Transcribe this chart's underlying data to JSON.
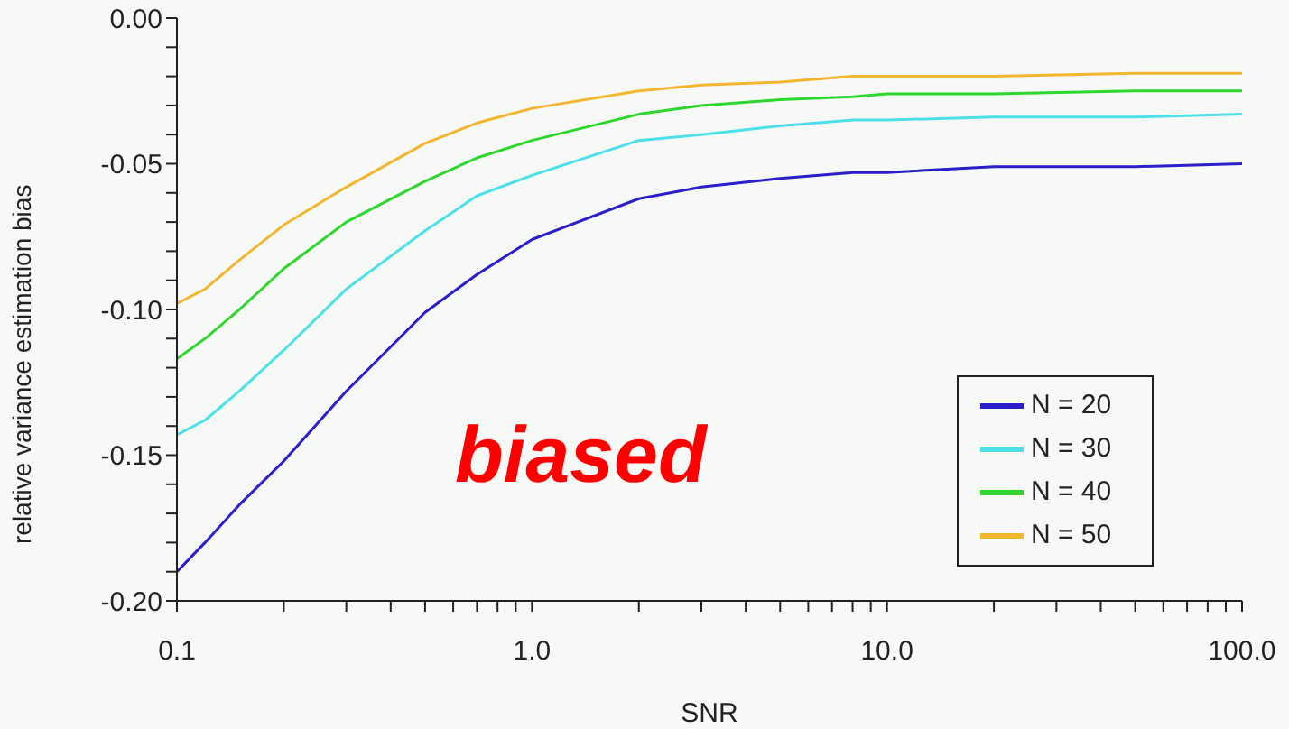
{
  "chart_data": {
    "type": "line",
    "xlabel": "SNR",
    "ylabel": "relative variance estimation bias",
    "annotations": [
      "biased"
    ],
    "x": [
      0.1,
      0.12,
      0.15,
      0.2,
      0.3,
      0.5,
      0.7,
      1,
      2,
      3,
      5,
      8,
      10,
      20,
      50,
      100
    ],
    "series": [
      {
        "name": "N = 20",
        "color": "#2a1fc8",
        "values": [
          -0.19,
          -0.18,
          -0.167,
          -0.152,
          -0.128,
          -0.101,
          -0.088,
          -0.076,
          -0.062,
          -0.058,
          -0.055,
          -0.053,
          -0.053,
          -0.051,
          -0.051,
          -0.05
        ]
      },
      {
        "name": "N = 30",
        "color": "#4de0e8",
        "values": [
          -0.143,
          -0.138,
          -0.128,
          -0.114,
          -0.093,
          -0.073,
          -0.061,
          -0.054,
          -0.042,
          -0.04,
          -0.037,
          -0.035,
          -0.035,
          -0.034,
          -0.034,
          -0.033
        ]
      },
      {
        "name": "N = 40",
        "color": "#2ed62e",
        "values": [
          -0.117,
          -0.11,
          -0.1,
          -0.086,
          -0.07,
          -0.056,
          -0.048,
          -0.042,
          -0.033,
          -0.03,
          -0.028,
          -0.027,
          -0.026,
          -0.026,
          -0.025,
          -0.025
        ]
      },
      {
        "name": "N = 50",
        "color": "#f2b630",
        "values": [
          -0.098,
          -0.093,
          -0.083,
          -0.071,
          -0.058,
          -0.043,
          -0.036,
          -0.031,
          -0.025,
          -0.023,
          -0.022,
          -0.02,
          -0.02,
          -0.02,
          -0.019,
          -0.019
        ]
      }
    ],
    "log": "x",
    "xlim": [
      0.1,
      100
    ],
    "xticks": [
      {
        "value": 0.1,
        "label": "0.1"
      },
      {
        "value": 0.2,
        "label": null
      },
      {
        "value": 0.3,
        "label": null
      },
      {
        "value": 0.4,
        "label": null
      },
      {
        "value": 0.5,
        "label": null
      },
      {
        "value": 0.6,
        "label": null
      },
      {
        "value": 0.7,
        "label": null
      },
      {
        "value": 0.8,
        "label": null
      },
      {
        "value": 0.9,
        "label": null
      },
      {
        "value": 1,
        "label": "1.0"
      },
      {
        "value": 2,
        "label": null
      },
      {
        "value": 3,
        "label": null
      },
      {
        "value": 4,
        "label": null
      },
      {
        "value": 5,
        "label": null
      },
      {
        "value": 6,
        "label": null
      },
      {
        "value": 7,
        "label": null
      },
      {
        "value": 8,
        "label": null
      },
      {
        "value": 9,
        "label": null
      },
      {
        "value": 10,
        "label": "10.0"
      },
      {
        "value": 20,
        "label": null
      },
      {
        "value": 30,
        "label": null
      },
      {
        "value": 40,
        "label": null
      },
      {
        "value": 50,
        "label": null
      },
      {
        "value": 60,
        "label": null
      },
      {
        "value": 70,
        "label": null
      },
      {
        "value": 80,
        "label": null
      },
      {
        "value": 90,
        "label": null
      },
      {
        "value": 100,
        "label": "100.0"
      }
    ],
    "ylim": [
      -0.2,
      0
    ],
    "yticks": [
      {
        "value": -0.2,
        "label": "-0.20"
      },
      {
        "value": -0.19,
        "label": null
      },
      {
        "value": -0.18,
        "label": null
      },
      {
        "value": -0.17,
        "label": null
      },
      {
        "value": -0.16,
        "label": null
      },
      {
        "value": -0.15,
        "label": "-0.15"
      },
      {
        "value": -0.14,
        "label": null
      },
      {
        "value": -0.13,
        "label": null
      },
      {
        "value": -0.12,
        "label": null
      },
      {
        "value": -0.11,
        "label": null
      },
      {
        "value": -0.1,
        "label": "-0.10"
      },
      {
        "value": -0.09,
        "label": null
      },
      {
        "value": -0.08,
        "label": null
      },
      {
        "value": -0.07,
        "label": null
      },
      {
        "value": -0.06,
        "label": null
      },
      {
        "value": -0.05,
        "label": "-0.05"
      },
      {
        "value": -0.04,
        "label": null
      },
      {
        "value": -0.03,
        "label": null
      },
      {
        "value": -0.02,
        "label": null
      },
      {
        "value": -0.01,
        "label": null
      },
      {
        "value": 0,
        "label": "0.00"
      }
    ],
    "grid": false,
    "legend": "bottom right",
    "marker": "none",
    "line_style": "solid"
  }
}
